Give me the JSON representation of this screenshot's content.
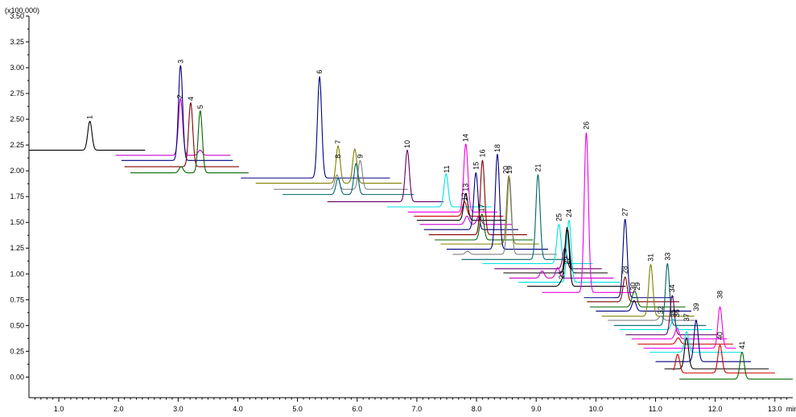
{
  "chart_data": {
    "type": "line",
    "y_unit_label": "(x100,000)",
    "x_unit_label": "min",
    "xlim": [
      0.5,
      13.3
    ],
    "ylim": [
      -0.2,
      3.5
    ],
    "x_ticks": [
      1.0,
      2.0,
      3.0,
      4.0,
      5.0,
      6.0,
      7.0,
      8.0,
      9.0,
      10.0,
      11.0,
      12.0,
      13.0
    ],
    "x_tick_labels": [
      "1.0",
      "2.0",
      "3.0",
      "4.0",
      "5.0",
      "6.0",
      "7.0",
      "8.0",
      "9.0",
      "10.0",
      "11.0",
      "12.0",
      "13.0"
    ],
    "y_ticks": [
      0.0,
      0.25,
      0.5,
      0.75,
      1.0,
      1.25,
      1.5,
      1.75,
      2.0,
      2.25,
      2.5,
      2.75,
      3.0,
      3.25,
      3.5
    ],
    "y_tick_labels": [
      "0.00",
      "0.25",
      "0.50",
      "0.75",
      "1.00",
      "1.25",
      "1.50",
      "1.75",
      "2.00",
      "2.25",
      "2.50",
      "2.75",
      "3.00",
      "3.25",
      "3.50"
    ],
    "grid": false,
    "legend": "none",
    "peak_width": 0.035,
    "traces": [
      {
        "color": "#000000",
        "x_start": 0.5,
        "x_end": 2.45,
        "baseline": 2.2,
        "peaks": [
          [
            1.52,
            0.28
          ]
        ]
      },
      {
        "color": "#cc00cc",
        "x_start": 1.95,
        "x_end": 3.88,
        "baseline": 2.15,
        "peaks": [
          [
            3.04,
            0.55
          ],
          [
            3.37,
            0.05
          ]
        ]
      },
      {
        "color": "#000080",
        "x_start": 2.05,
        "x_end": 3.92,
        "baseline": 2.1,
        "peaks": [
          [
            3.04,
            0.92
          ]
        ]
      },
      {
        "color": "#800000",
        "x_start": 2.1,
        "x_end": 4.02,
        "baseline": 2.04,
        "peaks": [
          [
            3.21,
            0.62
          ]
        ]
      },
      {
        "color": "#006600",
        "x_start": 2.2,
        "x_end": 4.18,
        "baseline": 1.98,
        "peaks": [
          [
            3.05,
            0.06
          ],
          [
            3.37,
            0.6
          ]
        ]
      },
      {
        "color": "#000080",
        "x_start": 4.05,
        "x_end": 6.55,
        "baseline": 1.93,
        "peaks": [
          [
            5.37,
            0.98
          ]
        ]
      },
      {
        "color": "#808000",
        "x_start": 4.3,
        "x_end": 6.75,
        "baseline": 1.88,
        "peaks": [
          [
            5.68,
            0.36
          ],
          [
            5.96,
            0.33
          ]
        ]
      },
      {
        "color": "#808080",
        "x_start": 4.6,
        "x_end": 6.85,
        "baseline": 1.82,
        "peaks": [
          [
            5.66,
            0.14
          ],
          [
            6.05,
            0.28
          ]
        ]
      },
      {
        "color": "#006666",
        "x_start": 4.75,
        "x_end": 6.95,
        "baseline": 1.77,
        "peaks": [
          [
            5.68,
            0.16
          ],
          [
            5.98,
            0.3
          ]
        ]
      },
      {
        "color": "#660066",
        "x_start": 5.5,
        "x_end": 7.45,
        "baseline": 1.7,
        "peaks": [
          [
            6.84,
            0.5
          ]
        ]
      },
      {
        "color": "#00e0e0",
        "x_start": 6.5,
        "x_end": 8.25,
        "baseline": 1.65,
        "peaks": [
          [
            7.49,
            0.32
          ]
        ]
      },
      {
        "color": "#ee00ee",
        "x_start": 6.85,
        "x_end": 8.35,
        "baseline": 1.6,
        "peaks": [
          [
            7.82,
            0.66
          ]
        ]
      },
      {
        "color": "#cc0000",
        "x_start": 6.95,
        "x_end": 8.45,
        "baseline": 1.56,
        "peaks": [
          [
            7.8,
            0.14
          ]
        ]
      },
      {
        "color": "#000000",
        "x_start": 7.0,
        "x_end": 8.5,
        "baseline": 1.52,
        "peaks": [
          [
            7.82,
            0.26
          ]
        ]
      },
      {
        "color": "#cc00cc",
        "x_start": 7.05,
        "x_end": 8.6,
        "baseline": 1.48,
        "peaks": [
          [
            7.84,
            0.08
          ],
          [
            8.04,
            0.08
          ]
        ]
      },
      {
        "color": "#000080",
        "x_start": 7.12,
        "x_end": 8.7,
        "baseline": 1.43,
        "peaks": [
          [
            7.99,
            0.55
          ]
        ]
      },
      {
        "color": "#800000",
        "x_start": 7.2,
        "x_end": 8.85,
        "baseline": 1.38,
        "peaks": [
          [
            8.1,
            0.72
          ]
        ]
      },
      {
        "color": "#006600",
        "x_start": 7.3,
        "x_end": 8.95,
        "baseline": 1.33,
        "peaks": [
          [
            8.09,
            0.25
          ]
        ]
      },
      {
        "color": "#808000",
        "x_start": 7.4,
        "x_end": 9.05,
        "baseline": 1.29,
        "peaks": [
          [
            8.54,
            0.66
          ]
        ]
      },
      {
        "color": "#000080",
        "x_start": 7.5,
        "x_end": 9.2,
        "baseline": 1.24,
        "peaks": [
          [
            8.35,
            0.92
          ]
        ]
      },
      {
        "color": "#808080",
        "x_start": 7.6,
        "x_end": 9.35,
        "baseline": 1.19,
        "peaks": [
          [
            7.85,
            0.03
          ],
          [
            8.55,
            0.75
          ]
        ]
      },
      {
        "color": "#006666",
        "x_start": 7.75,
        "x_end": 9.5,
        "baseline": 1.14,
        "peaks": [
          [
            9.03,
            0.82
          ]
        ]
      },
      {
        "color": "#00e0e0",
        "x_start": 8.1,
        "x_end": 9.95,
        "baseline": 1.1,
        "peaks": [
          [
            9.38,
            0.38
          ]
        ]
      },
      {
        "color": "#660066",
        "x_start": 8.3,
        "x_end": 10.1,
        "baseline": 1.05,
        "peaks": [
          [
            8.2,
            0.02
          ],
          [
            9.48,
            0.2
          ]
        ]
      },
      {
        "color": "#000000",
        "x_start": 8.45,
        "x_end": 10.2,
        "baseline": 1.01,
        "peaks": [
          [
            9.52,
            0.44
          ]
        ]
      },
      {
        "color": "#cc00cc",
        "x_start": 8.55,
        "x_end": 10.3,
        "baseline": 0.96,
        "peaks": [
          [
            9.1,
            0.07
          ],
          [
            9.36,
            0.1
          ]
        ]
      },
      {
        "color": "#00e0e0",
        "x_start": 8.7,
        "x_end": 10.4,
        "baseline": 0.92,
        "peaks": [
          [
            9.55,
            0.6
          ]
        ]
      },
      {
        "color": "#000000",
        "x_start": 8.85,
        "x_end": 10.5,
        "baseline": 0.88,
        "peaks": [
          [
            9.43,
            0.05
          ],
          [
            9.52,
            0.55
          ]
        ]
      },
      {
        "color": "#ee00ee",
        "x_start": 9.1,
        "x_end": 10.65,
        "baseline": 0.82,
        "peaks": [
          [
            9.84,
            1.55
          ]
        ]
      },
      {
        "color": "#000080",
        "x_start": 9.8,
        "x_end": 11.3,
        "baseline": 0.77,
        "peaks": [
          [
            10.49,
            0.76
          ],
          [
            11.38,
            0.16
          ]
        ]
      },
      {
        "color": "#800000",
        "x_start": 9.85,
        "x_end": 11.4,
        "baseline": 0.73,
        "peaks": [
          [
            10.49,
            0.24
          ]
        ]
      },
      {
        "color": "#006600",
        "x_start": 9.9,
        "x_end": 11.5,
        "baseline": 0.68,
        "peaks": [
          [
            10.62,
            0.06
          ],
          [
            10.66,
            0.12
          ]
        ]
      },
      {
        "color": "#000080",
        "x_start": 10.0,
        "x_end": 11.6,
        "baseline": 0.64,
        "peaks": [
          [
            10.64,
            0.1
          ]
        ]
      },
      {
        "color": "#808000",
        "x_start": 10.1,
        "x_end": 11.65,
        "baseline": 0.59,
        "peaks": [
          [
            10.92,
            0.5
          ]
        ]
      },
      {
        "color": "#808080",
        "x_start": 10.2,
        "x_end": 11.7,
        "baseline": 0.55,
        "peaks": [
          [
            11.09,
            0.04
          ]
        ]
      },
      {
        "color": "#006666",
        "x_start": 10.3,
        "x_end": 11.85,
        "baseline": 0.5,
        "peaks": [
          [
            11.2,
            0.6
          ]
        ]
      },
      {
        "color": "#00e0e0",
        "x_start": 10.4,
        "x_end": 11.95,
        "baseline": 0.46,
        "peaks": [
          [
            11.3,
            0.1
          ]
        ]
      },
      {
        "color": "#660066",
        "x_start": 10.5,
        "x_end": 12.05,
        "baseline": 0.41,
        "peaks": [
          [
            11.28,
            0.38
          ]
        ]
      },
      {
        "color": "#ee00ee",
        "x_start": 10.6,
        "x_end": 12.2,
        "baseline": 0.37,
        "peaks": [
          [
            11.36,
            0.1
          ]
        ]
      },
      {
        "color": "#cc0000",
        "x_start": 10.7,
        "x_end": 12.3,
        "baseline": 0.32,
        "peaks": [
          [
            11.38,
            0.06
          ]
        ]
      },
      {
        "color": "#ee00ee",
        "x_start": 10.8,
        "x_end": 12.35,
        "baseline": 0.28,
        "peaks": [
          [
            12.08,
            0.4
          ]
        ]
      },
      {
        "color": "#00e0e0",
        "x_start": 10.9,
        "x_end": 12.45,
        "baseline": 0.24,
        "peaks": [
          [
            11.52,
            0.2
          ]
        ]
      },
      {
        "color": "#000080",
        "x_start": 11.0,
        "x_end": 12.6,
        "baseline": 0.15,
        "peaks": [
          [
            11.68,
            0.4
          ]
        ]
      },
      {
        "color": "#000000",
        "x_start": 11.15,
        "x_end": 12.9,
        "baseline": 0.08,
        "peaks": [
          [
            11.52,
            0.3
          ]
        ]
      },
      {
        "color": "#cc0000",
        "x_start": 11.3,
        "x_end": 13.0,
        "baseline": 0.04,
        "peaks": [
          [
            11.37,
            0.18
          ],
          [
            12.08,
            0.27
          ]
        ]
      },
      {
        "color": "#006600",
        "x_start": 11.4,
        "x_end": 13.3,
        "baseline": -0.02,
        "peaks": [
          [
            12.45,
            0.26
          ]
        ]
      }
    ],
    "peak_labels": [
      {
        "label": "1",
        "x": 1.52,
        "y": 2.5
      },
      {
        "label": "2",
        "x": 3.03,
        "y": 2.7
      },
      {
        "label": "3",
        "x": 3.04,
        "y": 3.04
      },
      {
        "label": "4",
        "x": 3.21,
        "y": 2.68
      },
      {
        "label": "5",
        "x": 3.37,
        "y": 2.6
      },
      {
        "label": "6",
        "x": 5.37,
        "y": 2.94
      },
      {
        "label": "7",
        "x": 5.68,
        "y": 2.26
      },
      {
        "label": "8",
        "x": 5.68,
        "y": 2.12
      },
      {
        "label": "9",
        "x": 6.05,
        "y": 2.12
      },
      {
        "label": "10",
        "x": 6.84,
        "y": 2.22
      },
      {
        "label": "11",
        "x": 7.5,
        "y": 1.98
      },
      {
        "label": "12",
        "x": 7.8,
        "y": 1.71
      },
      {
        "label": "13",
        "x": 7.82,
        "y": 1.8
      },
      {
        "label": "14",
        "x": 7.82,
        "y": 2.28
      },
      {
        "label": "15",
        "x": 7.99,
        "y": 2.01
      },
      {
        "label": "16",
        "x": 8.1,
        "y": 2.13
      },
      {
        "label": "17",
        "x": 8.09,
        "y": 1.6
      },
      {
        "label": "18",
        "x": 8.35,
        "y": 2.18
      },
      {
        "label": "19",
        "x": 8.55,
        "y": 1.97
      },
      {
        "label": "20",
        "x": 8.49,
        "y": 1.97
      },
      {
        "label": "21",
        "x": 9.03,
        "y": 1.99
      },
      {
        "label": "22",
        "x": 9.52,
        "y": 1.09
      },
      {
        "label": "23",
        "x": 9.43,
        "y": 0.95
      },
      {
        "label": "24",
        "x": 9.55,
        "y": 1.55
      },
      {
        "label": "25",
        "x": 9.38,
        "y": 1.51
      },
      {
        "label": "26",
        "x": 9.84,
        "y": 2.4
      },
      {
        "label": "27",
        "x": 10.49,
        "y": 1.56
      },
      {
        "label": "28",
        "x": 10.49,
        "y": 1.0
      },
      {
        "label": "29",
        "x": 10.7,
        "y": 0.84
      },
      {
        "label": "30",
        "x": 10.62,
        "y": 0.84
      },
      {
        "label": "31",
        "x": 10.92,
        "y": 1.12
      },
      {
        "label": "32",
        "x": 11.09,
        "y": 0.61
      },
      {
        "label": "33",
        "x": 11.2,
        "y": 1.13
      },
      {
        "label": "34",
        "x": 11.28,
        "y": 0.82
      },
      {
        "label": "35",
        "x": 11.3,
        "y": 0.58
      },
      {
        "label": "36",
        "x": 11.36,
        "y": 0.58
      },
      {
        "label": "37",
        "x": 11.52,
        "y": 0.54
      },
      {
        "label": "38",
        "x": 12.08,
        "y": 0.76
      },
      {
        "label": "39",
        "x": 11.68,
        "y": 0.64
      },
      {
        "label": "40",
        "x": 12.08,
        "y": 0.36
      },
      {
        "label": "41",
        "x": 12.45,
        "y": 0.27
      }
    ]
  }
}
